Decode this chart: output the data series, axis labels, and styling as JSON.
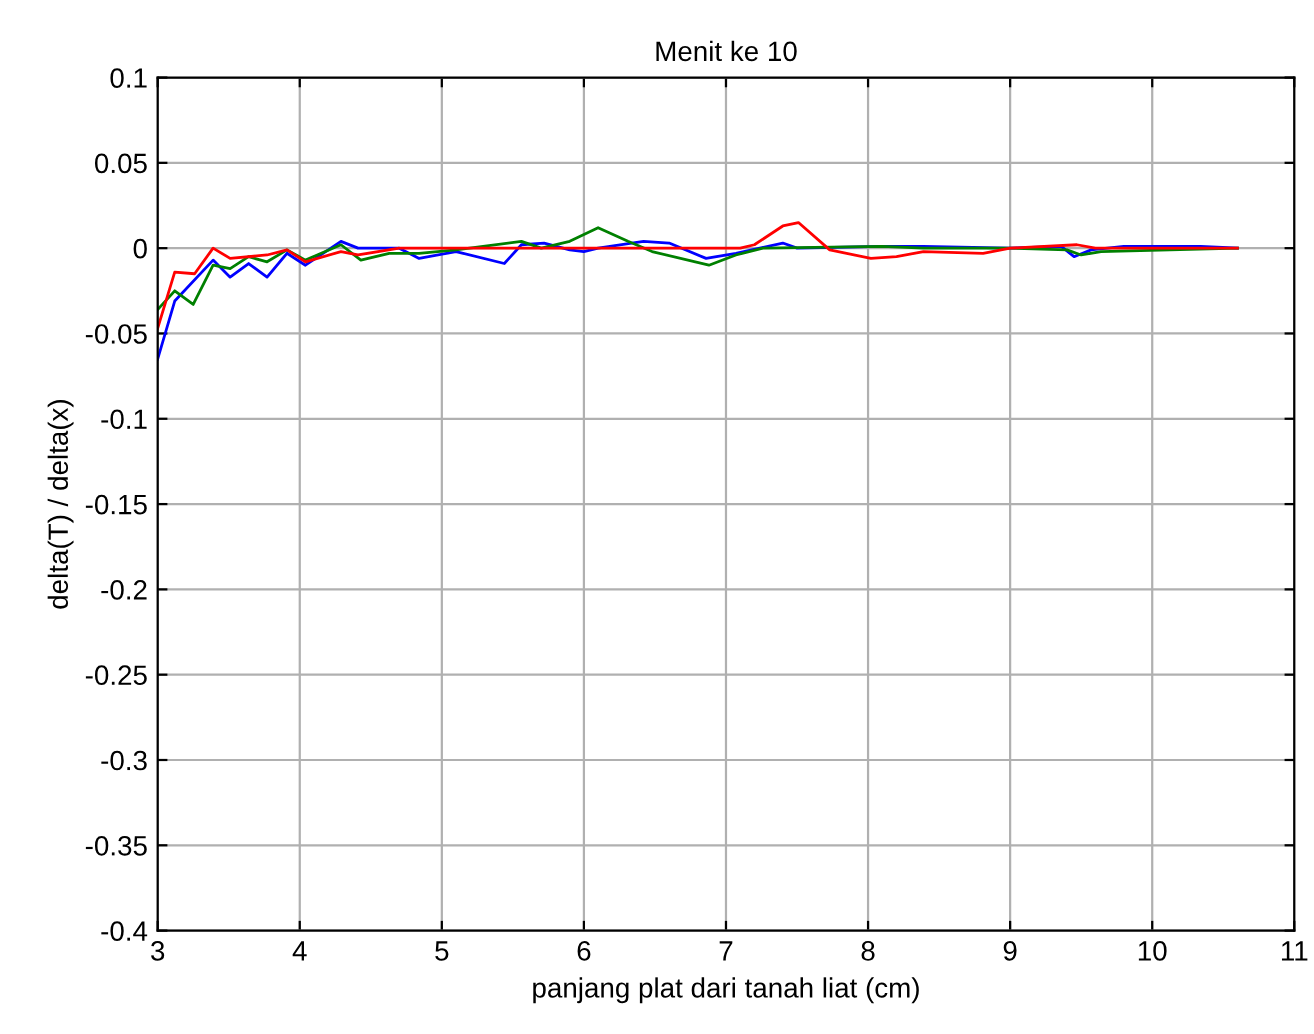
{
  "chart_data": {
    "type": "line",
    "title": "Menit ke 10",
    "xlabel": "panjang plat dari tanah liat (cm)",
    "ylabel": "delta(T) / delta(x)",
    "xlim": [
      3,
      11
    ],
    "xticks": [
      3,
      4,
      5,
      6,
      7,
      8,
      9,
      10,
      11
    ],
    "ylim": [
      -0.4,
      0.1
    ],
    "yticks": [
      -0.4,
      -0.35,
      -0.3,
      -0.25,
      -0.2,
      -0.15,
      -0.1,
      -0.05,
      0,
      0.05,
      0.1
    ],
    "grid": true,
    "line_style": "solid",
    "marker": "none",
    "series": [
      {
        "color": "#0000ff",
        "x": [
          3.0,
          3.12,
          3.39,
          3.51,
          3.64,
          3.77,
          3.91,
          4.04,
          4.29,
          4.41,
          4.7,
          4.84,
          5.1,
          5.44,
          5.56,
          5.72,
          5.9,
          6.0,
          6.1,
          6.42,
          6.6,
          6.86,
          7.07,
          7.4,
          7.5,
          8.1,
          8.39,
          9.0,
          9.36,
          9.45,
          9.57,
          9.8,
          10.34,
          10.6
        ],
        "values": [
          -0.065,
          -0.031,
          -0.007,
          -0.017,
          -0.009,
          -0.017,
          -0.003,
          -0.01,
          0.004,
          0,
          0,
          -0.006,
          -0.002,
          -0.009,
          0.002,
          0.003,
          -0.001,
          -0.002,
          0,
          0.004,
          0.003,
          -0.006,
          -0.003,
          0.003,
          0,
          0.001,
          0.001,
          0,
          0.001,
          -0.005,
          -0.001,
          0.001,
          0.001,
          0
        ]
      },
      {
        "color": "#008000",
        "x": [
          3.0,
          3.12,
          3.25,
          3.39,
          3.51,
          3.64,
          3.77,
          3.91,
          4.04,
          4.29,
          4.43,
          4.63,
          4.84,
          5.1,
          5.56,
          5.7,
          5.9,
          6.1,
          6.31,
          6.48,
          6.88,
          7.07,
          7.26,
          8.1,
          8.39,
          9.0,
          9.4,
          9.5,
          9.64,
          10.6
        ],
        "values": [
          -0.036,
          -0.025,
          -0.033,
          -0.01,
          -0.012,
          -0.005,
          -0.008,
          -0.001,
          -0.007,
          0.002,
          -0.007,
          -0.003,
          -0.003,
          -0.001,
          0.004,
          0,
          0.004,
          0.012,
          0.004,
          -0.002,
          -0.01,
          -0.004,
          0,
          0.001,
          0,
          0,
          -0.001,
          -0.004,
          -0.002,
          0
        ]
      },
      {
        "color": "#ff0000",
        "x": [
          3.0,
          3.12,
          3.26,
          3.39,
          3.51,
          3.77,
          3.91,
          4.04,
          4.29,
          4.41,
          4.7,
          7.1,
          7.2,
          7.4,
          7.51,
          7.73,
          8.02,
          8.2,
          8.39,
          8.81,
          9.0,
          9.47,
          9.6,
          10.6
        ],
        "values": [
          -0.047,
          -0.014,
          -0.015,
          0,
          -0.006,
          -0.004,
          -0.001,
          -0.008,
          -0.002,
          -0.004,
          0,
          0,
          0.002,
          0.013,
          0.015,
          -0.001,
          -0.006,
          -0.005,
          -0.002,
          -0.003,
          0,
          0.002,
          0,
          0
        ]
      }
    ]
  }
}
